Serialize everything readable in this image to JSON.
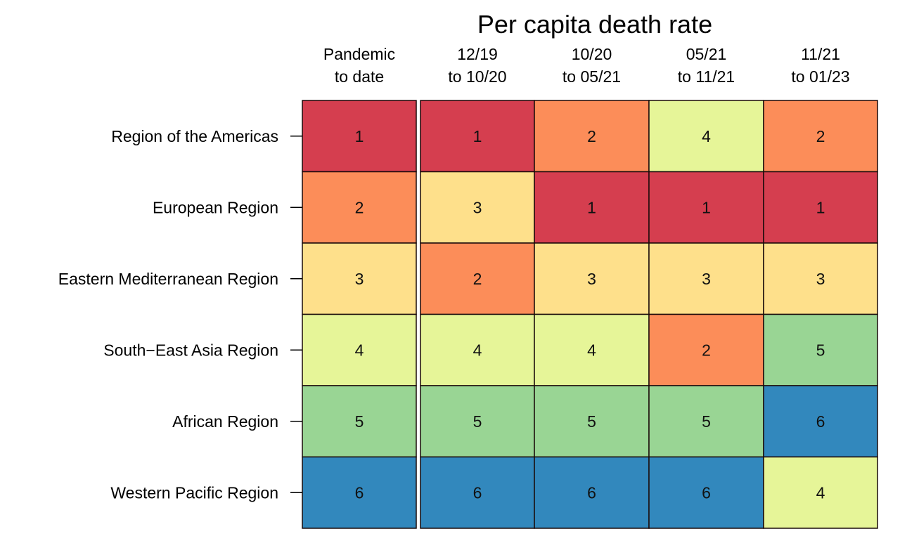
{
  "chart_data": {
    "type": "heatmap",
    "title": "Per capita death rate",
    "columns": [
      "Pandemic\nto date",
      "12/19\nto 10/20",
      "10/20\nto 05/21",
      "05/21\nto 11/21",
      "11/21\nto 01/23"
    ],
    "rows": [
      "Region of the Americas",
      "European Region",
      "Eastern Mediterranean Region",
      "South−East Asia Region",
      "African Region",
      "Western Pacific Region"
    ],
    "values": [
      [
        1,
        1,
        2,
        4,
        2
      ],
      [
        2,
        3,
        1,
        1,
        1
      ],
      [
        3,
        2,
        3,
        3,
        3
      ],
      [
        4,
        4,
        4,
        2,
        5
      ],
      [
        5,
        5,
        5,
        5,
        6
      ],
      [
        6,
        6,
        6,
        6,
        4
      ]
    ],
    "color_scale": {
      "1": "#d53e4f",
      "2": "#fc8d59",
      "3": "#fee08b",
      "4": "#e6f598",
      "5": "#99d594",
      "6": "#3288bd"
    },
    "first_column_separated": true
  }
}
